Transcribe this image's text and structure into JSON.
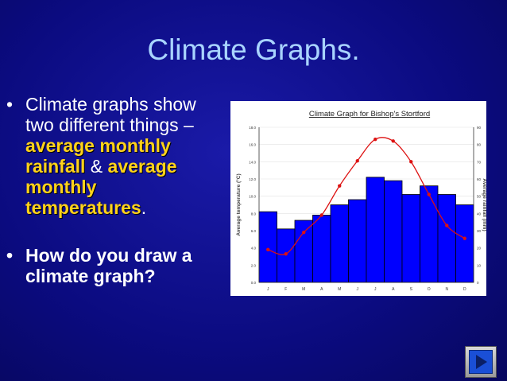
{
  "slide": {
    "title": "Climate Graphs.",
    "bullet1": {
      "text_a": "Climate graphs show two different things – ",
      "hl_a": "average monthly rainfall",
      "text_b": " & ",
      "hl_b": "average monthly temperatures",
      "text_c": "."
    },
    "bullet2": "How do you draw a climate graph?",
    "next_icon": "play-right-icon",
    "colors": {
      "background": "#0d0d8a",
      "title": "#a9d4ff",
      "highlight": "#ffd21a"
    }
  },
  "chart_data": {
    "type": "bar",
    "title": "Climate Graph for Bishop's Stortford",
    "categories": [
      "J",
      "F",
      "M",
      "A",
      "M",
      "J",
      "J",
      "A",
      "S",
      "O",
      "N",
      "D"
    ],
    "ylabel": "Average temperature (°C)",
    "y2label": "Average rainfall (mm)",
    "ylim": [
      0,
      18
    ],
    "y2lim": [
      0,
      90
    ],
    "yticks": [
      "0.0",
      "2.0",
      "4.0",
      "6.0",
      "8.0",
      "10.0",
      "12.0",
      "14.0",
      "16.0",
      "18.0"
    ],
    "y2ticks": [
      "0",
      "10",
      "20",
      "30",
      "40",
      "50",
      "60",
      "70",
      "80",
      "90"
    ],
    "series": [
      {
        "type": "bar",
        "axis": "right",
        "color": "#0000ff",
        "values": [
          41,
          31,
          36,
          39,
          45,
          48,
          61,
          59,
          51,
          56,
          51,
          45
        ]
      },
      {
        "type": "line",
        "axis": "left",
        "color": "#dd1111",
        "values": [
          3.8,
          3.3,
          5.8,
          7.8,
          11.2,
          14.1,
          16.6,
          16.4,
          14.0,
          10.2,
          6.6,
          5.1
        ]
      }
    ]
  }
}
